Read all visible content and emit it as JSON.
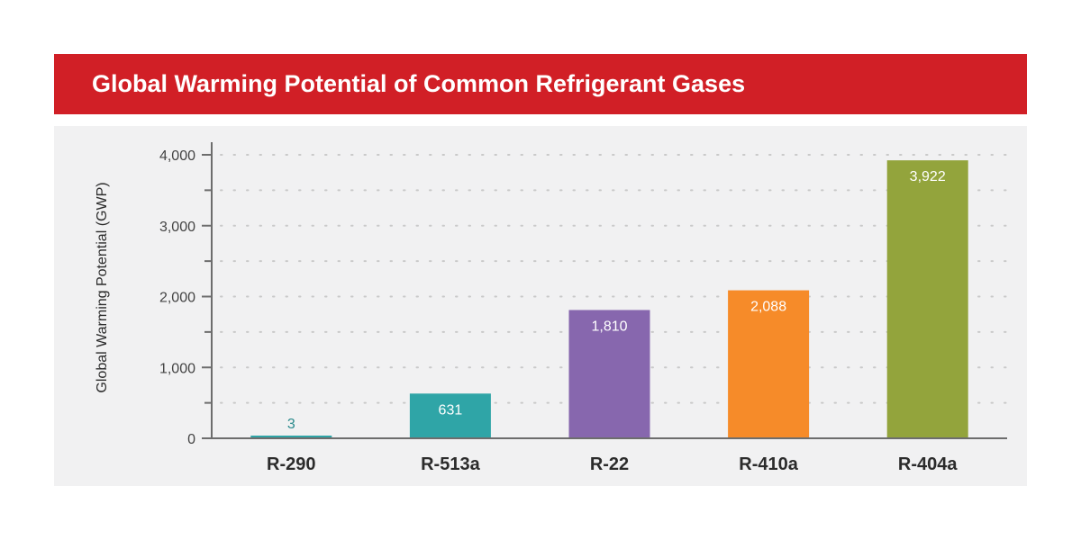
{
  "header": {
    "title": "Global Warming Potential of Common Refrigerant Gases"
  },
  "colors": {
    "header_bg": "#d11f26",
    "panel_bg": "#f1f1f2",
    "axis": "#6d6d6d",
    "grid": "#c9c9c9",
    "small_label": "#2a8a8c"
  },
  "chart_data": {
    "type": "bar",
    "title": "Global Warming Potential of Common Refrigerant Gases",
    "xlabel": "",
    "ylabel": "Global Warming Potential (GWP)",
    "ylim": [
      0,
      4000
    ],
    "yticks": [
      0,
      1000,
      2000,
      3000,
      4000
    ],
    "ytick_labels": [
      "0",
      "1,000",
      "2,000",
      "3,000",
      "4,000"
    ],
    "minor_step": 500,
    "grid": "dotted",
    "categories": [
      "R-290",
      "R-513a",
      "R-22",
      "R-410a",
      "R-404a"
    ],
    "values": [
      3,
      631,
      1810,
      2088,
      3922
    ],
    "value_labels": [
      "3",
      "631",
      "1,810",
      "2,088",
      "3,922"
    ],
    "bar_colors": [
      "#2fa5a7",
      "#2fa5a7",
      "#8767ae",
      "#f68b29",
      "#93a43c"
    ]
  }
}
